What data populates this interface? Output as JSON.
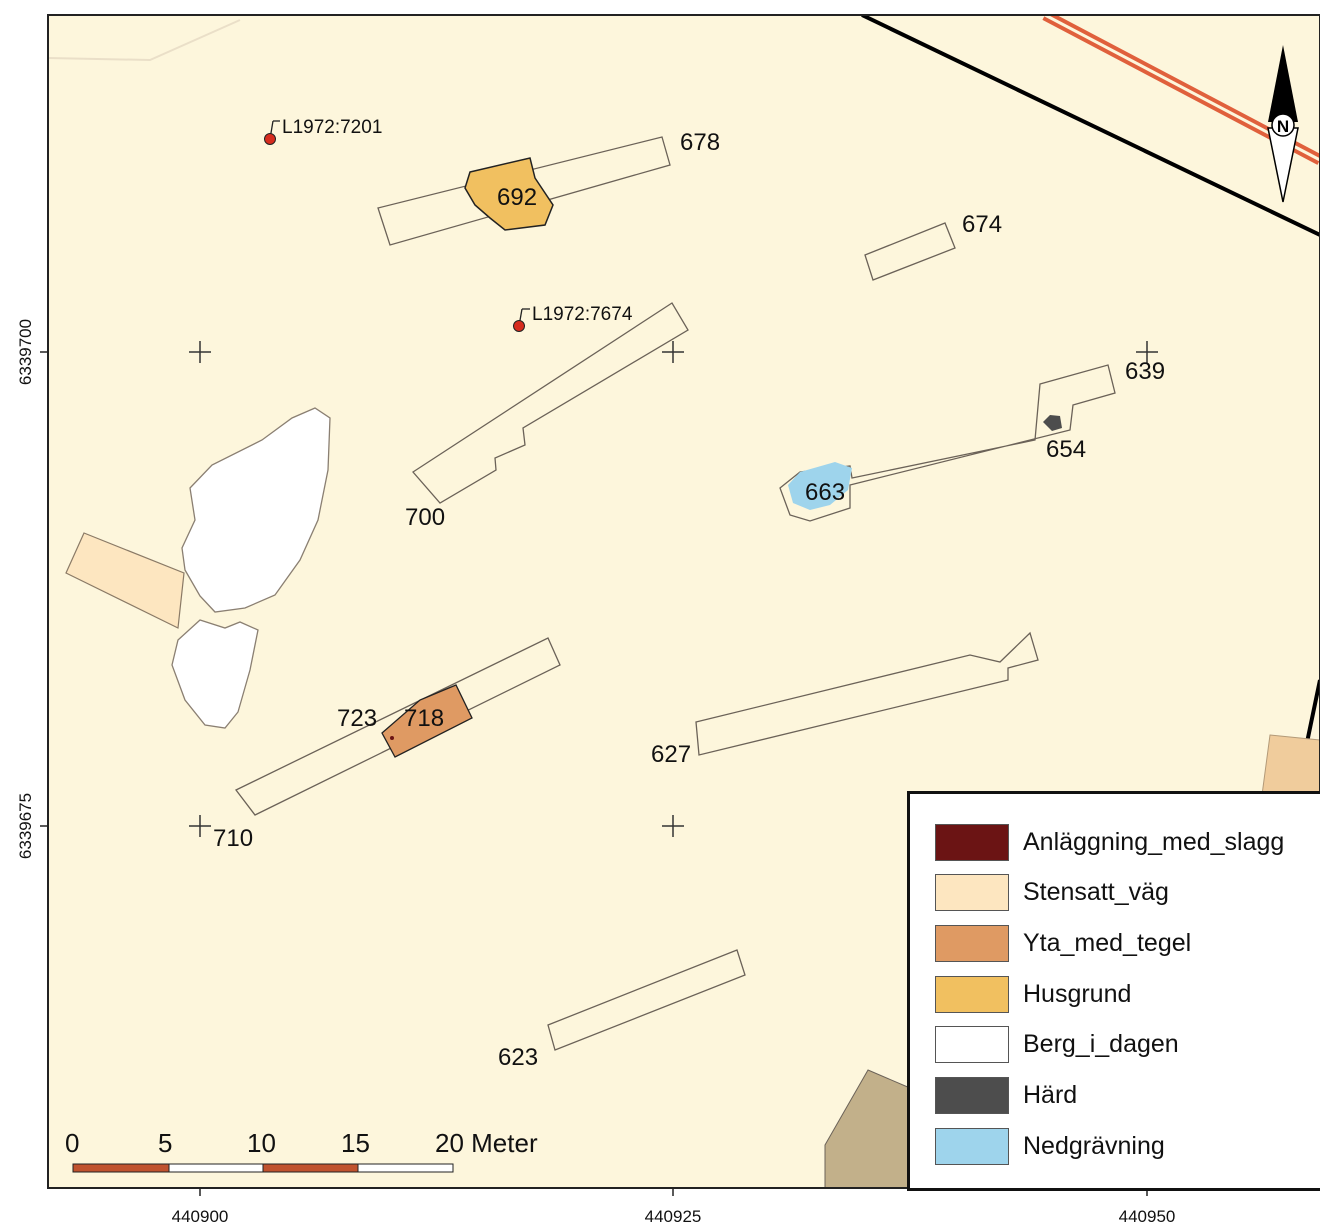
{
  "map": {
    "colors": {
      "background": "#fdf6dc",
      "road_stripe": "#e0603c",
      "boundary_line": "#000000",
      "feature_outline": "#6b6258"
    },
    "x_ticks": [
      "440900",
      "440925",
      "440950"
    ],
    "y_ticks": [
      "6339700",
      "6339675"
    ],
    "feature_labels": {
      "f678": "678",
      "f692": "692",
      "f674": "674",
      "f700": "700",
      "f639": "639",
      "f654": "654",
      "f663": "663",
      "f723": "723",
      "f718": "718",
      "f627": "627",
      "f710": "710",
      "f623": "623"
    },
    "point_labels": {
      "p1": "L1972:7201",
      "p2": "L1972:7674"
    },
    "north_arrow_label": "N",
    "scale_bar": {
      "labels": [
        "0",
        "5",
        "10",
        "15"
      ],
      "last_label": "20 Meter"
    }
  },
  "legend": {
    "items": [
      {
        "label": "Anläggning_med_slagg",
        "color": "#6b1414"
      },
      {
        "label": "Stensatt_väg",
        "color": "#fde6c0"
      },
      {
        "label": "Yta_med_tegel",
        "color": "#df9a63"
      },
      {
        "label": "Husgrund",
        "color": "#f1c060"
      },
      {
        "label": "Berg_i_dagen",
        "color": "#ffffff"
      },
      {
        "label": "Härd",
        "color": "#4d4d4d"
      },
      {
        "label": "Nedgrävning",
        "color": "#9ed4ec"
      }
    ]
  }
}
